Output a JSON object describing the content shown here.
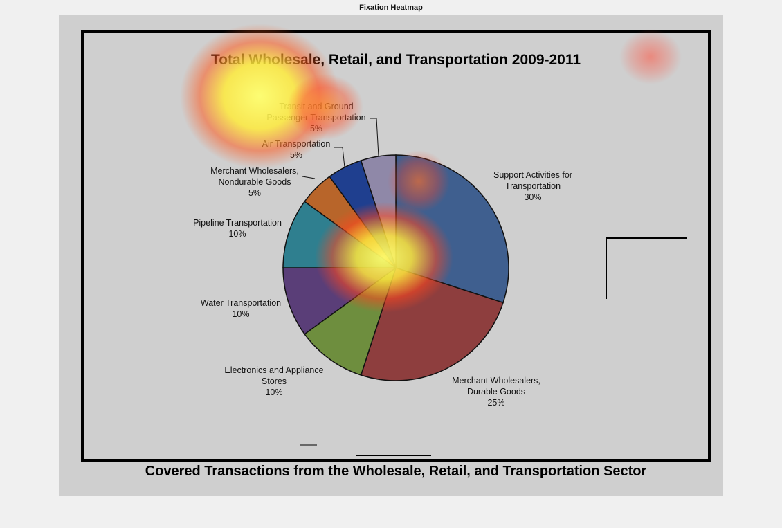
{
  "window": {
    "title": "Fixation Heatmap"
  },
  "chart_data": {
    "type": "pie",
    "title": "Total Wholesale, Retail, and Transportation 2009-2011",
    "subtitle": "Covered Transactions from the Wholesale, Retail, and Transportation Sector",
    "slices": [
      {
        "label": [
          "Support Activities for",
          "Transportation"
        ],
        "pct_text": "30%",
        "value": 30,
        "color": "#3f5f8f"
      },
      {
        "label": [
          "Merchant Wholesalers,",
          "Durable Goods"
        ],
        "pct_text": "25%",
        "value": 25,
        "color": "#8e3e3e"
      },
      {
        "label": [
          "Electronics and Appliance",
          "Stores"
        ],
        "pct_text": "10%",
        "value": 10,
        "color": "#6e8e3e"
      },
      {
        "label": [
          "Water Transportation"
        ],
        "pct_text": "10%",
        "value": 10,
        "color": "#5a3e78"
      },
      {
        "label": [
          "Pipeline Transportation"
        ],
        "pct_text": "10%",
        "value": 10,
        "color": "#2f7f8f"
      },
      {
        "label": [
          "Merchant Wholesalers,",
          "Nondurable Goods"
        ],
        "pct_text": "5%",
        "value": 5,
        "color": "#b8652a"
      },
      {
        "label": [
          "Air Transportation"
        ],
        "pct_text": "5%",
        "value": 5,
        "color": "#1f3f8f"
      },
      {
        "label": [
          "Transit and Ground",
          "Passenger Transportation"
        ],
        "pct_text": "5%",
        "value": 5,
        "color": "#8f88a8"
      }
    ]
  },
  "heatmap": {
    "colors": [
      "#ffff66",
      "#ff4422"
    ]
  }
}
